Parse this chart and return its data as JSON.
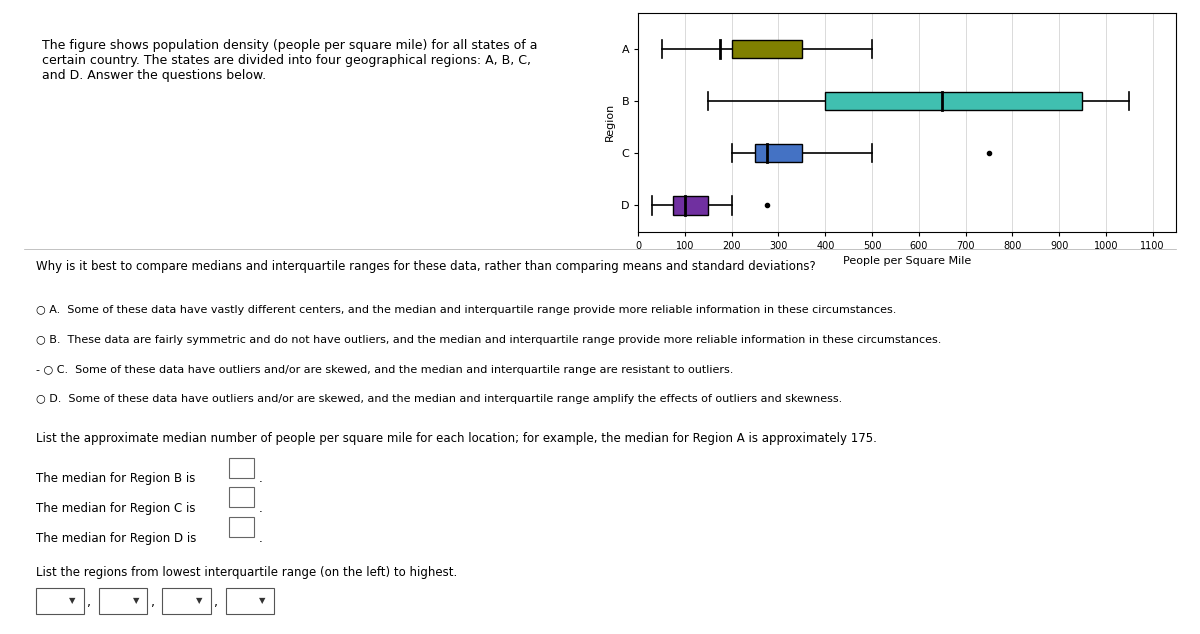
{
  "title_text": "The figure shows population density (people per square mile) for all states of a\ncertain country. The states are divided into four geographical regions: A, B, C,\nand D. Answer the questions below.",
  "xlabel": "People per Square Mile",
  "ylabel": "Region",
  "regions": [
    "A",
    "B",
    "C",
    "D"
  ],
  "boxplot_data": {
    "A": {
      "min": 50,
      "q1": 200,
      "median": 175,
      "q3": 350,
      "max": 500,
      "outliers": []
    },
    "B": {
      "min": 150,
      "q1": 400,
      "median": 650,
      "q3": 950,
      "max": 1050,
      "outliers": []
    },
    "C": {
      "min": 200,
      "q1": 250,
      "median": 275,
      "q3": 350,
      "max": 500,
      "outliers": [
        750
      ]
    },
    "D": {
      "min": 30,
      "q1": 75,
      "median": 100,
      "q3": 150,
      "max": 200,
      "outliers": [
        275
      ]
    }
  },
  "colors": {
    "A": "#808000",
    "B": "#40BFB0",
    "C": "#4472C4",
    "D": "#7030A0"
  },
  "xlim": [
    0,
    1150
  ],
  "xticks": [
    0,
    100,
    200,
    300,
    400,
    500,
    600,
    700,
    800,
    900,
    1000,
    1100
  ],
  "question_text": "Why is it best to compare medians and interquartile ranges for these data, rather than comparing means and standard deviations?",
  "opt_A": "○ A.  Some of these data have vastly different centers, and the median and interquartile range provide more reliable information in these circumstances.",
  "opt_B": "○ B.  These data are fairly symmetric and do not have outliers, and the median and interquartile range provide more reliable information in these circumstances.",
  "opt_C": "- ○ C.  Some of these data have outliers and/or are skewed, and the median and interquartile range are resistant to outliers.",
  "opt_D": "○ D.  Some of these data have outliers and/or are skewed, and the median and interquartile range amplify the effects of outliers and skewness.",
  "median_question": "List the approximate median number of people per square mile for each location; for example, the median for Region A is approximately 175.",
  "median_line_B": "The median for Region B is",
  "median_line_C": "The median for Region C is",
  "median_line_D": "The median for Region D is",
  "iqr_line": "List the regions from lowest interquartile range (on the left) to highest.",
  "bg_color": "#FFFFFF"
}
